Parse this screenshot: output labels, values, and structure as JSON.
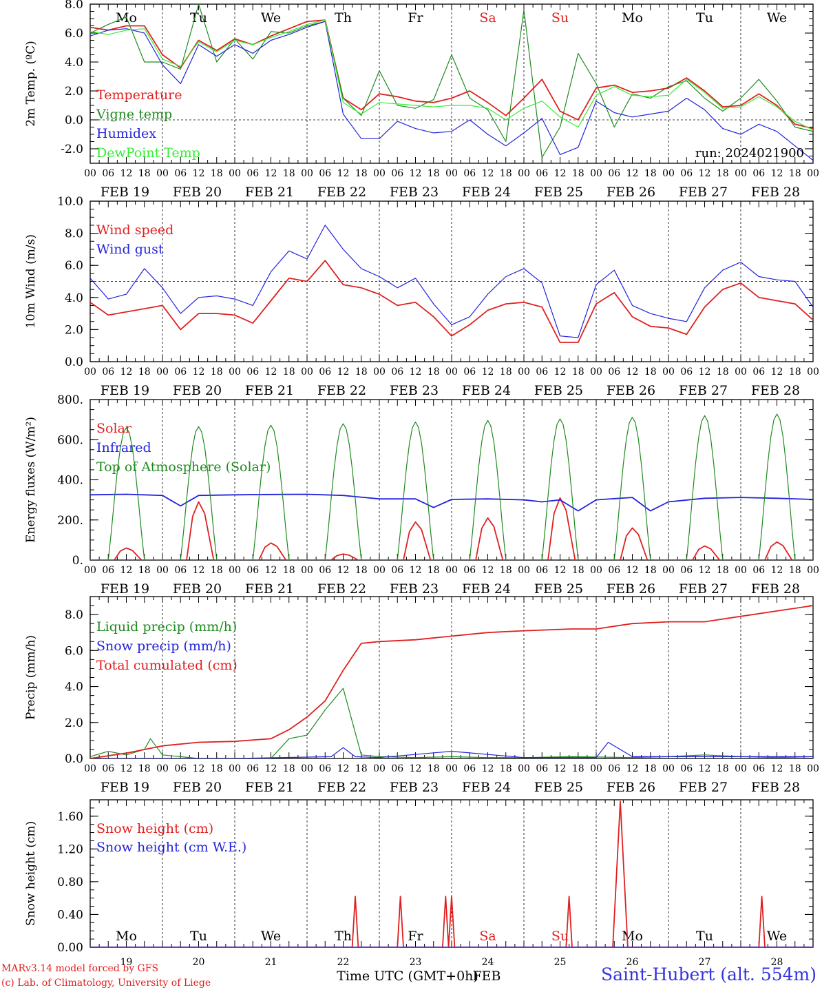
{
  "run_label": "run: 2024021900",
  "day_dates": [
    "FEB 19",
    "FEB 20",
    "FEB 21",
    "FEB 22",
    "FEB 23",
    "FEB 24",
    "FEB 25",
    "FEB 26",
    "FEB 27",
    "FEB 28"
  ],
  "day_numbers": [
    "19",
    "20",
    "21",
    "22",
    "23",
    "24",
    "25",
    "26",
    "27",
    "28"
  ],
  "weekdays": [
    {
      "label": "Mo",
      "color": "#000000"
    },
    {
      "label": "Tu",
      "color": "#000000"
    },
    {
      "label": "We",
      "color": "#000000"
    },
    {
      "label": "Th",
      "color": "#000000"
    },
    {
      "label": "Fr",
      "color": "#000000"
    },
    {
      "label": "Sa",
      "color": "#e02020"
    },
    {
      "label": "Su",
      "color": "#e02020"
    },
    {
      "label": "Mo",
      "color": "#000000"
    },
    {
      "label": "Tu",
      "color": "#000000"
    },
    {
      "label": "We",
      "color": "#000000"
    }
  ],
  "hour_ticks": [
    "00",
    "06",
    "12",
    "18"
  ],
  "end_hour_tick": "00",
  "x_axis_title": "Time UTC (GMT+0h)",
  "x_axis_month": "FEB",
  "footer": {
    "model": "MARv3.14 model forced by GFS",
    "lab": "(c) Lab. of Climatology, University of Liege",
    "station": "Saint-Hubert (alt. 554m)"
  },
  "colors": {
    "red": "#e02020",
    "green": "#1f8a1f",
    "blue": "#2222dd",
    "lightgreen": "#33ee33"
  },
  "chart_data": [
    {
      "id": "temp",
      "type": "line",
      "ylabel": "2m Temp. (ºC)",
      "ylim": [
        -3,
        8
      ],
      "yticks": [
        -2,
        0,
        2,
        4,
        6,
        8
      ],
      "ytick_labels": [
        "-2.0",
        "0.0",
        "2.0",
        "4.0",
        "6.0",
        "8.0"
      ],
      "ref_line": 0,
      "weekday_row": "top",
      "x_hours": [
        0,
        6,
        12,
        18,
        24,
        30,
        36,
        42,
        48,
        54,
        60,
        66,
        72,
        78,
        84,
        90,
        96,
        102,
        108,
        114,
        120,
        126,
        132,
        138,
        144,
        150,
        156,
        162,
        168,
        174,
        180,
        186,
        192,
        198,
        204,
        210,
        216,
        222,
        228,
        234,
        240
      ],
      "series": [
        {
          "name": "Temperature",
          "color": "red",
          "values": [
            6.4,
            6.2,
            6.5,
            6.5,
            4.5,
            3.6,
            5.5,
            4.8,
            5.6,
            5.2,
            5.8,
            6.3,
            6.8,
            6.9,
            1.5,
            0.7,
            1.8,
            1.6,
            1.3,
            1.2,
            1.5,
            2.0,
            1.2,
            0.3,
            1.5,
            2.8,
            0.6,
            0.0,
            2.2,
            2.4,
            1.9,
            2.0,
            2.2,
            2.9,
            2.0,
            0.9,
            1.0,
            1.8,
            1.0,
            -0.3,
            -0.6
          ]
        },
        {
          "name": "Vigne temp",
          "color": "green",
          "values": [
            6.0,
            6.6,
            7.1,
            4.0,
            4.0,
            3.5,
            8.0,
            4.0,
            5.6,
            4.2,
            6.1,
            6.0,
            6.5,
            6.8,
            1.5,
            0.3,
            3.4,
            1.0,
            0.8,
            1.4,
            4.5,
            1.5,
            0.7,
            -1.5,
            7.6,
            -2.6,
            -0.5,
            4.6,
            2.5,
            -0.5,
            1.8,
            1.5,
            2.3,
            2.7,
            1.5,
            0.6,
            1.5,
            2.8,
            1.3,
            -0.5,
            -0.8
          ]
        },
        {
          "name": "Humidex",
          "color": "blue",
          "values": [
            5.8,
            6.2,
            6.3,
            6.0,
            3.8,
            2.5,
            5.2,
            4.4,
            5.2,
            4.6,
            5.5,
            5.9,
            6.4,
            6.8,
            0.4,
            -1.3,
            -1.3,
            -0.1,
            -0.6,
            -0.9,
            -0.8,
            0.0,
            -1.0,
            -1.8,
            -0.9,
            0.1,
            -2.4,
            -1.9,
            1.3,
            0.5,
            0.2,
            0.4,
            0.6,
            1.5,
            0.7,
            -0.6,
            -1.0,
            -0.3,
            -0.8,
            -1.8,
            -2.8
          ]
        },
        {
          "name": "DewPoint Temp",
          "color": "lightgreen",
          "values": [
            6.1,
            5.9,
            6.2,
            6.3,
            4.2,
            3.7,
            5.4,
            4.7,
            5.5,
            5.2,
            5.7,
            6.1,
            6.6,
            6.9,
            1.2,
            0.4,
            1.2,
            1.1,
            1.0,
            0.9,
            1.0,
            1.0,
            0.8,
            0.0,
            0.8,
            1.3,
            0.2,
            -0.5,
            1.7,
            2.3,
            1.7,
            1.6,
            1.7,
            2.8,
            1.9,
            0.8,
            0.9,
            1.6,
            0.9,
            -0.1,
            -0.7
          ]
        }
      ]
    },
    {
      "id": "wind",
      "type": "line",
      "ylabel": "10m Wind (m/s)",
      "ylim": [
        0,
        10
      ],
      "yticks": [
        0,
        2,
        4,
        6,
        8,
        10
      ],
      "ytick_labels": [
        "0.0",
        "2.0",
        "4.0",
        "6.0",
        "8.0",
        "10.0"
      ],
      "ref_line": 5,
      "x_hours": [
        0,
        6,
        12,
        18,
        24,
        30,
        36,
        42,
        48,
        54,
        60,
        66,
        72,
        78,
        84,
        90,
        96,
        102,
        108,
        114,
        120,
        126,
        132,
        138,
        144,
        150,
        156,
        162,
        168,
        174,
        180,
        186,
        192,
        198,
        204,
        210,
        216,
        222,
        228,
        234,
        240
      ],
      "series": [
        {
          "name": "Wind speed",
          "color": "red",
          "values": [
            3.7,
            2.9,
            3.1,
            3.3,
            3.5,
            2.0,
            3.0,
            3.0,
            2.9,
            2.4,
            3.8,
            5.2,
            5.0,
            6.3,
            4.8,
            4.6,
            4.2,
            3.5,
            3.7,
            2.8,
            1.6,
            2.3,
            3.2,
            3.6,
            3.7,
            3.4,
            1.2,
            1.2,
            3.6,
            4.3,
            2.8,
            2.2,
            2.1,
            1.7,
            3.4,
            4.5,
            4.9,
            4.0,
            3.8,
            3.6,
            2.6
          ]
        },
        {
          "name": "Wind gust",
          "color": "blue",
          "values": [
            5.2,
            3.9,
            4.2,
            5.8,
            4.6,
            3.0,
            4.0,
            4.1,
            3.9,
            3.5,
            5.6,
            6.9,
            6.4,
            8.5,
            7.0,
            5.8,
            5.3,
            4.6,
            5.2,
            3.6,
            2.3,
            2.8,
            4.2,
            5.3,
            5.8,
            4.9,
            1.6,
            1.5,
            4.8,
            5.7,
            3.5,
            3.0,
            2.7,
            2.5,
            4.6,
            5.7,
            6.2,
            5.3,
            5.1,
            5.0,
            3.4
          ]
        }
      ]
    },
    {
      "id": "energy",
      "type": "line",
      "ylabel": "Energy fluxes (W/m²)",
      "ylim": [
        0,
        800
      ],
      "yticks": [
        0,
        200,
        400,
        600,
        800
      ],
      "ytick_labels": [
        "0.",
        "200.",
        "400.",
        "600.",
        "800."
      ],
      "series": [
        {
          "name": "Solar",
          "color": "red",
          "peaks": [
            60,
            290,
            85,
            30,
            190,
            210,
            310,
            160,
            70,
            90
          ]
        },
        {
          "name": "Infrared",
          "color": "blue",
          "x_hours": [
            0,
            12,
            24,
            30,
            36,
            48,
            60,
            72,
            84,
            96,
            108,
            114,
            120,
            132,
            144,
            150,
            156,
            162,
            168,
            180,
            186,
            192,
            204,
            216,
            228,
            240
          ],
          "values": [
            325,
            328,
            322,
            270,
            322,
            325,
            327,
            328,
            322,
            305,
            305,
            262,
            302,
            305,
            300,
            290,
            300,
            245,
            300,
            312,
            245,
            290,
            308,
            312,
            308,
            302
          ]
        },
        {
          "name": "Top of Atmosphere (Solar)",
          "color": "green",
          "peaks": [
            660,
            665,
            672,
            680,
            688,
            696,
            704,
            712,
            720,
            728
          ]
        }
      ]
    },
    {
      "id": "precip",
      "type": "line",
      "ylabel": "Precip (mm/h)",
      "ylim": [
        0,
        9
      ],
      "yticks": [
        0,
        2,
        4,
        6,
        8
      ],
      "ytick_labels": [
        "0.0",
        "2.0",
        "4.0",
        "6.0",
        "8.0"
      ],
      "series": [
        {
          "name": "Liquid precip (mm/h)",
          "color": "green",
          "x_hours": [
            0,
            6,
            12,
            18,
            20,
            24,
            30,
            36,
            48,
            60,
            66,
            72,
            78,
            84,
            90,
            96,
            108,
            120,
            132,
            144,
            160,
            180,
            192,
            204,
            216,
            228,
            240
          ],
          "values": [
            0.1,
            0.4,
            0.2,
            0.5,
            1.1,
            0.2,
            0.1,
            0.0,
            0.0,
            0.0,
            1.1,
            1.3,
            2.7,
            3.9,
            0.2,
            0.1,
            0.05,
            0.1,
            0.05,
            0.05,
            0.1,
            0.05,
            0.1,
            0.2,
            0.1,
            0.05,
            0.1
          ]
        },
        {
          "name": "Snow precip (mm/h)",
          "color": "blue",
          "x_hours": [
            0,
            24,
            48,
            80,
            84,
            88,
            96,
            120,
            144,
            168,
            172,
            180,
            204,
            240
          ],
          "values": [
            0.0,
            0.0,
            0.0,
            0.1,
            0.6,
            0.1,
            0.05,
            0.4,
            0.05,
            0.05,
            0.9,
            0.1,
            0.1,
            0.1
          ]
        },
        {
          "name": "Total cumulated (cm)",
          "color": "red",
          "x_hours": [
            0,
            12,
            24,
            36,
            48,
            60,
            66,
            72,
            78,
            84,
            90,
            96,
            108,
            120,
            132,
            144,
            160,
            168,
            180,
            192,
            204,
            216,
            228,
            240
          ],
          "values": [
            0.0,
            0.3,
            0.7,
            0.9,
            0.95,
            1.1,
            1.6,
            2.3,
            3.2,
            4.9,
            6.4,
            6.5,
            6.6,
            6.8,
            7.0,
            7.1,
            7.2,
            7.2,
            7.5,
            7.6,
            7.6,
            7.9,
            8.2,
            8.5
          ]
        }
      ]
    },
    {
      "id": "snow",
      "type": "line",
      "ylabel": "Snow height (cm)",
      "ylim": [
        0,
        1.8
      ],
      "yticks": [
        0,
        0.4,
        0.8,
        1.2,
        1.6
      ],
      "ytick_labels": [
        "0.00",
        "0.40",
        "0.80",
        "1.20",
        "1.60"
      ],
      "weekday_row": "bottom",
      "series": [
        {
          "name": "Snow height (cm)",
          "color": "red",
          "spikes": [
            [
              88,
              0.62
            ],
            [
              103,
              0.62
            ],
            [
              118,
              0.62
            ],
            [
              120,
              0.62
            ],
            [
              159,
              0.62
            ],
            [
              176,
              1.78
            ],
            [
              223,
              0.62
            ]
          ]
        },
        {
          "name": "Snow height (cm W.E.)",
          "color": "blue",
          "spikes": []
        }
      ]
    }
  ]
}
